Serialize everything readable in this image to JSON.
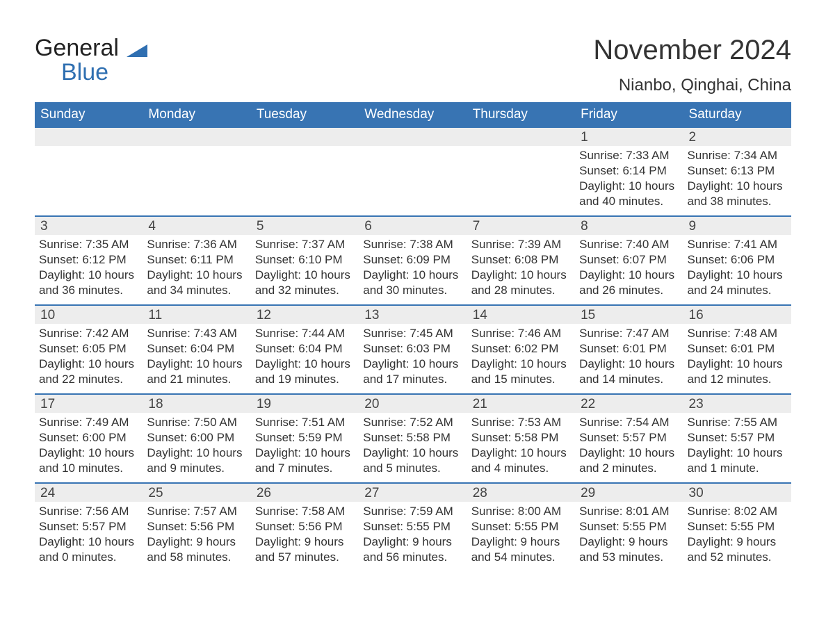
{
  "logo": {
    "text1": "General",
    "text2": "Blue"
  },
  "brand_colors": {
    "header_bg": "#3874b3",
    "accent": "#2f6fb1"
  },
  "title": "November 2024",
  "subtitle": "Nianbo, Qinghai, China",
  "days_of_week": [
    "Sunday",
    "Monday",
    "Tuesday",
    "Wednesday",
    "Thursday",
    "Friday",
    "Saturday"
  ],
  "weeks": [
    [
      null,
      null,
      null,
      null,
      null,
      {
        "n": "1",
        "sunrise": "Sunrise: 7:33 AM",
        "sunset": "Sunset: 6:14 PM",
        "daylight": "Daylight: 10 hours and 40 minutes."
      },
      {
        "n": "2",
        "sunrise": "Sunrise: 7:34 AM",
        "sunset": "Sunset: 6:13 PM",
        "daylight": "Daylight: 10 hours and 38 minutes."
      }
    ],
    [
      {
        "n": "3",
        "sunrise": "Sunrise: 7:35 AM",
        "sunset": "Sunset: 6:12 PM",
        "daylight": "Daylight: 10 hours and 36 minutes."
      },
      {
        "n": "4",
        "sunrise": "Sunrise: 7:36 AM",
        "sunset": "Sunset: 6:11 PM",
        "daylight": "Daylight: 10 hours and 34 minutes."
      },
      {
        "n": "5",
        "sunrise": "Sunrise: 7:37 AM",
        "sunset": "Sunset: 6:10 PM",
        "daylight": "Daylight: 10 hours and 32 minutes."
      },
      {
        "n": "6",
        "sunrise": "Sunrise: 7:38 AM",
        "sunset": "Sunset: 6:09 PM",
        "daylight": "Daylight: 10 hours and 30 minutes."
      },
      {
        "n": "7",
        "sunrise": "Sunrise: 7:39 AM",
        "sunset": "Sunset: 6:08 PM",
        "daylight": "Daylight: 10 hours and 28 minutes."
      },
      {
        "n": "8",
        "sunrise": "Sunrise: 7:40 AM",
        "sunset": "Sunset: 6:07 PM",
        "daylight": "Daylight: 10 hours and 26 minutes."
      },
      {
        "n": "9",
        "sunrise": "Sunrise: 7:41 AM",
        "sunset": "Sunset: 6:06 PM",
        "daylight": "Daylight: 10 hours and 24 minutes."
      }
    ],
    [
      {
        "n": "10",
        "sunrise": "Sunrise: 7:42 AM",
        "sunset": "Sunset: 6:05 PM",
        "daylight": "Daylight: 10 hours and 22 minutes."
      },
      {
        "n": "11",
        "sunrise": "Sunrise: 7:43 AM",
        "sunset": "Sunset: 6:04 PM",
        "daylight": "Daylight: 10 hours and 21 minutes."
      },
      {
        "n": "12",
        "sunrise": "Sunrise: 7:44 AM",
        "sunset": "Sunset: 6:04 PM",
        "daylight": "Daylight: 10 hours and 19 minutes."
      },
      {
        "n": "13",
        "sunrise": "Sunrise: 7:45 AM",
        "sunset": "Sunset: 6:03 PM",
        "daylight": "Daylight: 10 hours and 17 minutes."
      },
      {
        "n": "14",
        "sunrise": "Sunrise: 7:46 AM",
        "sunset": "Sunset: 6:02 PM",
        "daylight": "Daylight: 10 hours and 15 minutes."
      },
      {
        "n": "15",
        "sunrise": "Sunrise: 7:47 AM",
        "sunset": "Sunset: 6:01 PM",
        "daylight": "Daylight: 10 hours and 14 minutes."
      },
      {
        "n": "16",
        "sunrise": "Sunrise: 7:48 AM",
        "sunset": "Sunset: 6:01 PM",
        "daylight": "Daylight: 10 hours and 12 minutes."
      }
    ],
    [
      {
        "n": "17",
        "sunrise": "Sunrise: 7:49 AM",
        "sunset": "Sunset: 6:00 PM",
        "daylight": "Daylight: 10 hours and 10 minutes."
      },
      {
        "n": "18",
        "sunrise": "Sunrise: 7:50 AM",
        "sunset": "Sunset: 6:00 PM",
        "daylight": "Daylight: 10 hours and 9 minutes."
      },
      {
        "n": "19",
        "sunrise": "Sunrise: 7:51 AM",
        "sunset": "Sunset: 5:59 PM",
        "daylight": "Daylight: 10 hours and 7 minutes."
      },
      {
        "n": "20",
        "sunrise": "Sunrise: 7:52 AM",
        "sunset": "Sunset: 5:58 PM",
        "daylight": "Daylight: 10 hours and 5 minutes."
      },
      {
        "n": "21",
        "sunrise": "Sunrise: 7:53 AM",
        "sunset": "Sunset: 5:58 PM",
        "daylight": "Daylight: 10 hours and 4 minutes."
      },
      {
        "n": "22",
        "sunrise": "Sunrise: 7:54 AM",
        "sunset": "Sunset: 5:57 PM",
        "daylight": "Daylight: 10 hours and 2 minutes."
      },
      {
        "n": "23",
        "sunrise": "Sunrise: 7:55 AM",
        "sunset": "Sunset: 5:57 PM",
        "daylight": "Daylight: 10 hours and 1 minute."
      }
    ],
    [
      {
        "n": "24",
        "sunrise": "Sunrise: 7:56 AM",
        "sunset": "Sunset: 5:57 PM",
        "daylight": "Daylight: 10 hours and 0 minutes."
      },
      {
        "n": "25",
        "sunrise": "Sunrise: 7:57 AM",
        "sunset": "Sunset: 5:56 PM",
        "daylight": "Daylight: 9 hours and 58 minutes."
      },
      {
        "n": "26",
        "sunrise": "Sunrise: 7:58 AM",
        "sunset": "Sunset: 5:56 PM",
        "daylight": "Daylight: 9 hours and 57 minutes."
      },
      {
        "n": "27",
        "sunrise": "Sunrise: 7:59 AM",
        "sunset": "Sunset: 5:55 PM",
        "daylight": "Daylight: 9 hours and 56 minutes."
      },
      {
        "n": "28",
        "sunrise": "Sunrise: 8:00 AM",
        "sunset": "Sunset: 5:55 PM",
        "daylight": "Daylight: 9 hours and 54 minutes."
      },
      {
        "n": "29",
        "sunrise": "Sunrise: 8:01 AM",
        "sunset": "Sunset: 5:55 PM",
        "daylight": "Daylight: 9 hours and 53 minutes."
      },
      {
        "n": "30",
        "sunrise": "Sunrise: 8:02 AM",
        "sunset": "Sunset: 5:55 PM",
        "daylight": "Daylight: 9 hours and 52 minutes."
      }
    ]
  ]
}
